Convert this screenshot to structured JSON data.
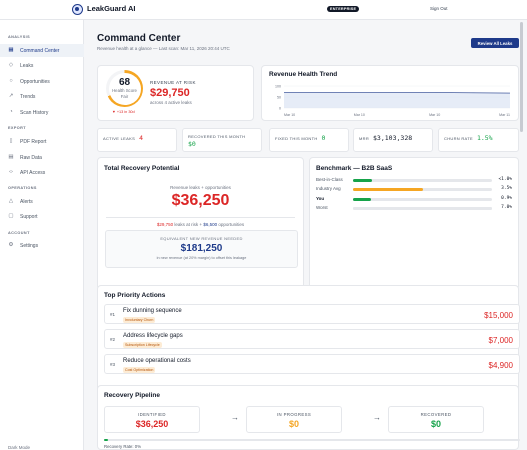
{
  "app": {
    "brand": "LeakGuard AI",
    "plan_badge": "ENTERPRISE",
    "sign_out": "Sign Out"
  },
  "sidebar": {
    "sections": [
      {
        "title": "ANALYSIS",
        "items": [
          {
            "label": "Command Center",
            "icon": "grid-icon",
            "active": true
          },
          {
            "label": "Leaks",
            "icon": "droplet-icon"
          },
          {
            "label": "Opportunities",
            "icon": "lightbulb-icon"
          },
          {
            "label": "Trends",
            "icon": "trend-icon"
          },
          {
            "label": "Scan History",
            "icon": "clock-icon"
          }
        ]
      },
      {
        "title": "EXPORT",
        "items": [
          {
            "label": "PDF Report",
            "icon": "document-icon"
          },
          {
            "label": "Raw Data",
            "icon": "table-icon"
          },
          {
            "label": "API Access",
            "icon": "code-icon"
          }
        ]
      },
      {
        "title": "OPERATIONS",
        "items": [
          {
            "label": "Alerts",
            "icon": "bell-icon"
          },
          {
            "label": "Support",
            "icon": "chat-icon"
          }
        ]
      },
      {
        "title": "ACCOUNT",
        "items": [
          {
            "label": "Settings",
            "icon": "gear-icon"
          }
        ]
      }
    ],
    "bottom_label": "Dark Mode"
  },
  "header": {
    "title": "Command Center",
    "subtitle": "Revenue health at a glance — Last scan: Mar 11, 2026 20:44 UTC",
    "review_button": "Review All Leaks"
  },
  "health": {
    "score": "68",
    "score_fraction": 0.68,
    "label": "Health Score",
    "grade": "Fair",
    "delta": "▼ +13 in 30d",
    "risk_label": "REVENUE AT RISK",
    "risk_value": "$29,750",
    "risk_note": "across 4 active leaks"
  },
  "trend": {
    "title": "Revenue Health Trend",
    "y_ticks": [
      "100",
      "50",
      "0"
    ],
    "x_ticks": [
      "Mar 10",
      "Mar 10",
      "Mar 10",
      "Mar 11"
    ]
  },
  "chart_data": {
    "type": "area",
    "title": "Revenue Health Trend",
    "x": [
      "Mar 10",
      "Mar 10",
      "Mar 10",
      "Mar 11"
    ],
    "y_ticks": [
      100,
      50,
      0
    ],
    "ylim": [
      0,
      100
    ],
    "series": [
      {
        "values": [
          70,
          70,
          70,
          68
        ]
      }
    ]
  },
  "metrics": [
    {
      "label": "ACTIVE LEAKS",
      "value": "4",
      "color": "#dc2626"
    },
    {
      "label": "RECOVERED THIS MONTH",
      "value": "$0",
      "color": "#16a34a"
    },
    {
      "label": "FIXED THIS MONTH",
      "value": "0",
      "color": "#16a34a"
    },
    {
      "label": "MRR",
      "value": "$3,103,328",
      "color": "#111827"
    },
    {
      "label": "CHURN RATE",
      "value": "1.5%",
      "color": "#16a34a"
    }
  ],
  "recovery": {
    "title": "Total Recovery Potential",
    "caption": "Revenue leaks + opportunities",
    "value": "$36,250",
    "at_risk_value": "$29,750",
    "at_risk_text": "leaks at risk",
    "separator": "+",
    "opportunities_value": "$6,500",
    "opportunities_text": "opportunities",
    "box_title": "EQUIVALENT NEW REVENUE NEEDED",
    "box_value": "$181,250",
    "box_note": "in new revenue (at 20% margin) to offset this leakage"
  },
  "benchmark": {
    "title": "Benchmark — B2B SaaS",
    "rows": [
      {
        "name": "Best-in-Class",
        "value": "<1.0%",
        "fraction": 0.14,
        "color": "#16a34a"
      },
      {
        "name": "Industry Avg",
        "value": "3.5%",
        "fraction": 0.5,
        "color": "#f5a623"
      },
      {
        "name": "You",
        "value": "0.9%",
        "fraction": 0.13,
        "color": "#16a34a"
      },
      {
        "name": "Worst",
        "value": "7.0%",
        "fraction": 1.0,
        "color": "#e5e7eb"
      }
    ]
  },
  "actions": {
    "title": "Top Priority Actions",
    "items": [
      {
        "rank": "#1",
        "title": "Fix dunning sequence",
        "tag": "Involuntary Churn",
        "value": "$15,000"
      },
      {
        "rank": "#2",
        "title": "Address lifecycle gaps",
        "tag": "Subscription Lifecycle",
        "value": "$7,000"
      },
      {
        "rank": "#3",
        "title": "Reduce operational costs",
        "tag": "Cost Optimization",
        "value": "$4,900"
      }
    ]
  },
  "pipeline": {
    "title": "Recovery Pipeline",
    "stages": [
      {
        "label": "IDENTIFIED",
        "value": "$36,250",
        "color": "#dc2626"
      },
      {
        "label": "IN PROGRESS",
        "value": "$0",
        "color": "#f5a623"
      },
      {
        "label": "RECOVERED",
        "value": "$0",
        "color": "#16a34a"
      }
    ],
    "arrow": "→",
    "rate_label": "Recovery Rate: 0%",
    "rate_fraction": 0.0
  },
  "colors": {
    "accent": "#1e3a8a",
    "danger": "#dc2626",
    "success": "#16a34a",
    "warning": "#f5a623"
  }
}
